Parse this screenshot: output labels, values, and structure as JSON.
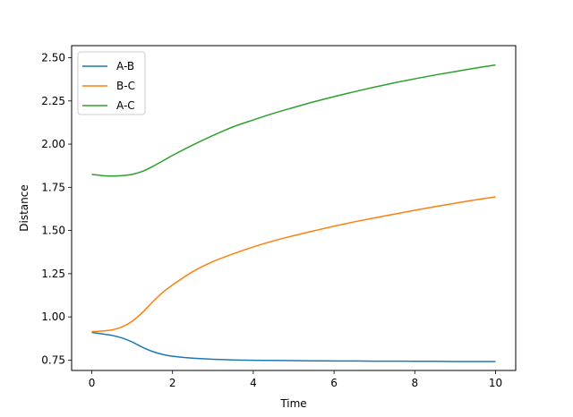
{
  "chart_data": {
    "type": "line",
    "title": "",
    "xlabel": "Time",
    "ylabel": "Distance",
    "xlim": [
      -0.5,
      10.5
    ],
    "ylim": [
      0.69,
      2.57
    ],
    "xticks": [
      0,
      2,
      4,
      6,
      8,
      10
    ],
    "xtick_labels": [
      "0",
      "2",
      "4",
      "6",
      "8",
      "10"
    ],
    "yticks": [
      0.75,
      1.0,
      1.25,
      1.5,
      1.75,
      2.0,
      2.25,
      2.5
    ],
    "ytick_labels": [
      "0.75",
      "1.00",
      "1.25",
      "1.50",
      "1.75",
      "2.00",
      "2.25",
      "2.50"
    ],
    "grid": false,
    "legend": "top-left",
    "x": [
      0,
      0.25,
      0.5,
      0.75,
      1.0,
      1.25,
      1.5,
      1.75,
      2.0,
      2.5,
      3.0,
      3.5,
      4.0,
      4.5,
      5.0,
      5.5,
      6.0,
      6.5,
      7.0,
      7.5,
      8.0,
      8.5,
      9.0,
      9.5,
      10.0
    ],
    "series": [
      {
        "name": "A-B",
        "color": "#1f77b4",
        "values": [
          0.91,
          0.902,
          0.893,
          0.878,
          0.855,
          0.825,
          0.8,
          0.783,
          0.772,
          0.761,
          0.755,
          0.751,
          0.749,
          0.748,
          0.747,
          0.746,
          0.745,
          0.745,
          0.744,
          0.744,
          0.743,
          0.743,
          0.742,
          0.742,
          0.742
        ]
      },
      {
        "name": "B-C",
        "color": "#ff7f0e",
        "values": [
          0.915,
          0.918,
          0.925,
          0.942,
          0.975,
          1.025,
          1.085,
          1.14,
          1.185,
          1.262,
          1.32,
          1.365,
          1.405,
          1.44,
          1.47,
          1.498,
          1.525,
          1.55,
          1.573,
          1.595,
          1.617,
          1.638,
          1.658,
          1.677,
          1.695
        ]
      },
      {
        "name": "A-C",
        "color": "#2ca02c",
        "values": [
          1.825,
          1.818,
          1.815,
          1.818,
          1.825,
          1.842,
          1.87,
          1.902,
          1.935,
          1.995,
          2.05,
          2.1,
          2.14,
          2.178,
          2.212,
          2.245,
          2.275,
          2.303,
          2.33,
          2.355,
          2.378,
          2.4,
          2.42,
          2.44,
          2.458
        ]
      }
    ]
  }
}
